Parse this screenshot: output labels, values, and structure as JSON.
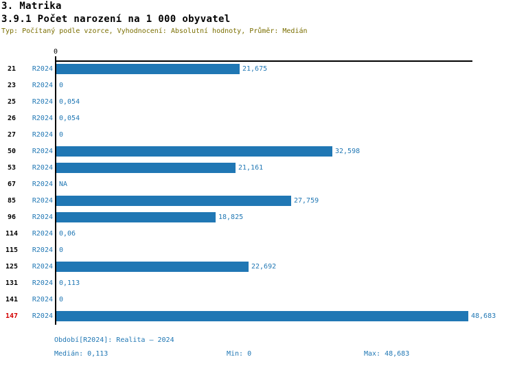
{
  "header": {
    "title": "3. Matrika",
    "subtitle": "3.9.1 Počet narození na 1 000 obyvatel",
    "meta": "Typ: Počítaný podle vzorce, Vyhodnocení: Absolutní hodnoty, Průměr: Medián"
  },
  "chart_data": {
    "type": "bar",
    "orientation": "horizontal",
    "title": "3.9.1 Počet narození na 1 000 obyvatel",
    "xlabel": "",
    "ylabel": "",
    "xlim": [
      0,
      48.683
    ],
    "axis_tick_label": "0",
    "grid": false,
    "series_label": "R2024",
    "categories": [
      "21",
      "23",
      "25",
      "26",
      "27",
      "50",
      "53",
      "67",
      "85",
      "96",
      "114",
      "115",
      "125",
      "131",
      "141",
      "147"
    ],
    "values": [
      21.675,
      0,
      0.054,
      0.054,
      0,
      32.598,
      21.161,
      null,
      27.759,
      18.825,
      0.06,
      0,
      22.692,
      0.113,
      0,
      48.683
    ],
    "value_labels": [
      "21,675",
      "0",
      "0,054",
      "0,054",
      "0",
      "32,598",
      "21,161",
      "NA",
      "27,759",
      "18,825",
      "0,06",
      "0",
      "22,692",
      "0,113",
      "0",
      "48,683"
    ],
    "highlighted_category": "147"
  },
  "footer": {
    "period": "Období[R2024]: Realita – 2024",
    "median": "Medián: 0,113",
    "min": "Min: 0",
    "max": "Max: 48,683"
  },
  "colors": {
    "bar_blue": "#2077B4",
    "text_blue": "#2077B4",
    "highlight_red": "#D40000",
    "meta_olive": "#7A6E00"
  }
}
